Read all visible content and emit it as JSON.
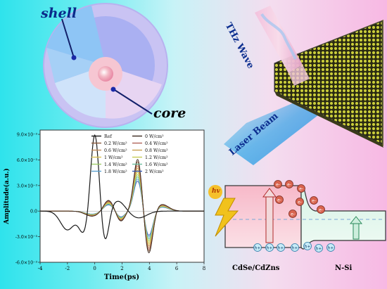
{
  "figure": {
    "shell_label": "shell",
    "core_label": "core",
    "thz_label": "THz Wave",
    "laser_label": "Laser Beam",
    "left_material": "CdSe/CdZns",
    "right_material": "N-Si",
    "photon_label": "hv",
    "electron_symbol": "e-",
    "hole_symbol": "h+"
  },
  "chart_data": {
    "type": "line",
    "title": "",
    "xlabel": "Time(ps)",
    "ylabel": "Amplitude(a.u.)",
    "xlim": [
      -4,
      8
    ],
    "ylim": [
      -0.006,
      0.0095
    ],
    "x_ticks": [
      "-4",
      "-2",
      "0",
      "2",
      "4",
      "6",
      "8"
    ],
    "y_ticks": [
      "9.0×10⁻³",
      "6.0×10⁻³",
      "3.0×10⁻³",
      "0.0",
      "-3.0×10⁻³",
      "-6.0×10⁻³"
    ],
    "legend_position": "top",
    "series": [
      {
        "name": "Ref",
        "color": "#1a1a1a"
      },
      {
        "name": "0   W/cm²",
        "color": "#3b2a20"
      },
      {
        "name": "0.2 W/cm²",
        "color": "#8a5a3c"
      },
      {
        "name": "0.4 W/cm²",
        "color": "#b0645a"
      },
      {
        "name": "0.6 W/cm²",
        "color": "#c08a5a"
      },
      {
        "name": "0.8 W/cm²",
        "color": "#c9a050"
      },
      {
        "name": "1   W/cm²",
        "color": "#d6c050"
      },
      {
        "name": "1.2 W/cm²",
        "color": "#c6cc55"
      },
      {
        "name": "1.4 W/cm²",
        "color": "#9ccc68"
      },
      {
        "name": "1.6 W/cm²",
        "color": "#6cc0a0"
      },
      {
        "name": "1.8 W/cm²",
        "color": "#5aa0d0"
      },
      {
        "name": "2   W/cm²",
        "color": "#3a5ab0"
      }
    ]
  }
}
